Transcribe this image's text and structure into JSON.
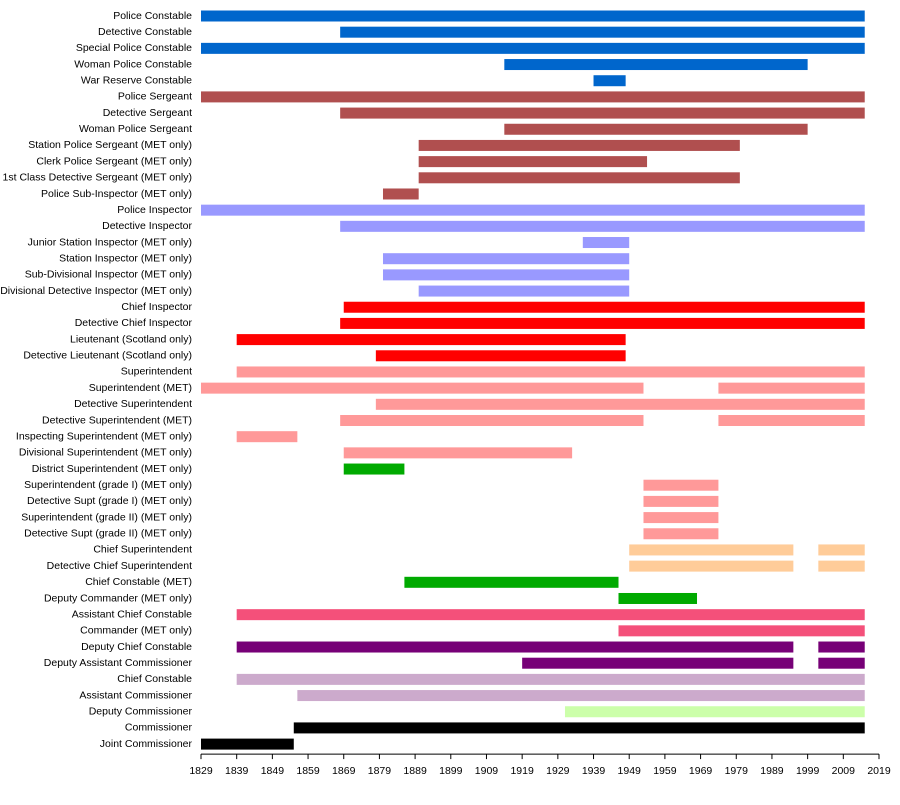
{
  "chart_data": {
    "type": "timeline",
    "xlim": [
      1829,
      2019
    ],
    "xticks": [
      1829,
      1839,
      1849,
      1859,
      1869,
      1879,
      1889,
      1899,
      1909,
      1919,
      1929,
      1939,
      1949,
      1959,
      1969,
      1979,
      1989,
      1999,
      2009,
      2019
    ],
    "rows": [
      {
        "name": "Police Constable",
        "color": "#0066cc",
        "segments": [
          [
            1829,
            2015
          ]
        ]
      },
      {
        "name": "Detective Constable",
        "color": "#0066cc",
        "segments": [
          [
            1868,
            2015
          ]
        ]
      },
      {
        "name": "Special Police Constable",
        "color": "#0066cc",
        "segments": [
          [
            1829,
            2015
          ]
        ]
      },
      {
        "name": "Woman Police Constable",
        "color": "#0066cc",
        "segments": [
          [
            1914,
            1999
          ]
        ]
      },
      {
        "name": "War Reserve Constable",
        "color": "#0066cc",
        "segments": [
          [
            1939,
            1948
          ]
        ]
      },
      {
        "name": "Police Sergeant",
        "color": "#b04f4f",
        "segments": [
          [
            1829,
            2015
          ]
        ]
      },
      {
        "name": "Detective Sergeant",
        "color": "#b04f4f",
        "segments": [
          [
            1868,
            2015
          ]
        ]
      },
      {
        "name": "Woman Police Sergeant",
        "color": "#b04f4f",
        "segments": [
          [
            1914,
            1999
          ]
        ]
      },
      {
        "name": "Station Police Sergeant (MET only)",
        "color": "#b04f4f",
        "segments": [
          [
            1890,
            1980
          ]
        ]
      },
      {
        "name": "Clerk Police Sergeant (MET only)",
        "color": "#b04f4f",
        "segments": [
          [
            1890,
            1954
          ]
        ]
      },
      {
        "name": "1st Class Detective Sergeant (MET only)",
        "color": "#b04f4f",
        "segments": [
          [
            1890,
            1980
          ]
        ]
      },
      {
        "name": "Police Sub-Inspector (MET only)",
        "color": "#b04f4f",
        "segments": [
          [
            1880,
            1890
          ]
        ]
      },
      {
        "name": "Police Inspector",
        "color": "#9999ff",
        "segments": [
          [
            1829,
            2015
          ]
        ]
      },
      {
        "name": "Detective Inspector",
        "color": "#9999ff",
        "segments": [
          [
            1868,
            2015
          ]
        ]
      },
      {
        "name": "Junior Station Inspector (MET only)",
        "color": "#9999ff",
        "segments": [
          [
            1936,
            1949
          ]
        ]
      },
      {
        "name": "Station Inspector (MET only)",
        "color": "#9999ff",
        "segments": [
          [
            1880,
            1949
          ]
        ]
      },
      {
        "name": "Sub-Divisional Inspector (MET only)",
        "color": "#9999ff",
        "segments": [
          [
            1880,
            1949
          ]
        ]
      },
      {
        "name": "Divisional Detective Inspector (MET only)",
        "color": "#9999ff",
        "segments": [
          [
            1890,
            1949
          ]
        ]
      },
      {
        "name": "Chief Inspector",
        "color": "#ff0000",
        "segments": [
          [
            1869,
            2015
          ]
        ]
      },
      {
        "name": "Detective Chief Inspector",
        "color": "#ff0000",
        "segments": [
          [
            1868,
            2015
          ]
        ]
      },
      {
        "name": "Lieutenant (Scotland only)",
        "color": "#ff0000",
        "segments": [
          [
            1839,
            1948
          ]
        ]
      },
      {
        "name": "Detective Lieutenant (Scotland only)",
        "color": "#ff0000",
        "segments": [
          [
            1878,
            1948
          ]
        ]
      },
      {
        "name": "Superintendent",
        "color": "#ff9999",
        "segments": [
          [
            1839,
            2015
          ]
        ]
      },
      {
        "name": "Superintendent (MET)",
        "color": "#ff9999",
        "segments": [
          [
            1829,
            1953
          ],
          [
            1974,
            2015
          ]
        ]
      },
      {
        "name": "Detective Superintendent",
        "color": "#ff9999",
        "segments": [
          [
            1878,
            2015
          ]
        ]
      },
      {
        "name": "Detective Superintendent (MET)",
        "color": "#ff9999",
        "segments": [
          [
            1868,
            1953
          ],
          [
            1974,
            2015
          ]
        ]
      },
      {
        "name": "Inspecting Superintendent (MET only)",
        "color": "#ff9999",
        "segments": [
          [
            1839,
            1856
          ]
        ]
      },
      {
        "name": "Divisional Superintendent (MET only)",
        "color": "#ff9999",
        "segments": [
          [
            1869,
            1933
          ]
        ]
      },
      {
        "name": "District Superintendent (MET only)",
        "color": "#00aa00",
        "segments": [
          [
            1869,
            1886
          ]
        ]
      },
      {
        "name": "Superintendent (grade I) (MET only)",
        "color": "#ff9999",
        "segments": [
          [
            1953,
            1974
          ]
        ]
      },
      {
        "name": "Detective Supt (grade I) (MET only)",
        "color": "#ff9999",
        "segments": [
          [
            1953,
            1974
          ]
        ]
      },
      {
        "name": "Superintendent (grade II) (MET only)",
        "color": "#ff9999",
        "segments": [
          [
            1953,
            1974
          ]
        ]
      },
      {
        "name": "Detective Supt (grade II) (MET only)",
        "color": "#ff9999",
        "segments": [
          [
            1953,
            1974
          ]
        ]
      },
      {
        "name": "Chief Superintendent",
        "color": "#ffcc99",
        "segments": [
          [
            1949,
            1995
          ],
          [
            2002,
            2015
          ]
        ]
      },
      {
        "name": "Detective Chief Superintendent",
        "color": "#ffcc99",
        "segments": [
          [
            1949,
            1995
          ],
          [
            2002,
            2015
          ]
        ]
      },
      {
        "name": "Chief Constable (MET)",
        "color": "#00aa00",
        "segments": [
          [
            1886,
            1946
          ]
        ]
      },
      {
        "name": "Deputy Commander (MET only)",
        "color": "#00aa00",
        "segments": [
          [
            1946,
            1968
          ]
        ]
      },
      {
        "name": "Assistant Chief Constable",
        "color": "#f4507a",
        "segments": [
          [
            1839,
            2015
          ]
        ]
      },
      {
        "name": "Commander (MET only)",
        "color": "#f4507a",
        "segments": [
          [
            1946,
            2015
          ]
        ]
      },
      {
        "name": "Deputy Chief Constable",
        "color": "#770077",
        "segments": [
          [
            1839,
            1995
          ],
          [
            2002,
            2015
          ]
        ]
      },
      {
        "name": "Deputy Assistant Commissioner",
        "color": "#770077",
        "segments": [
          [
            1919,
            1995
          ],
          [
            2002,
            2015
          ]
        ]
      },
      {
        "name": "Chief Constable",
        "color": "#ccaacc",
        "segments": [
          [
            1839,
            2015
          ]
        ]
      },
      {
        "name": "Assistant Commissioner",
        "color": "#ccaacc",
        "segments": [
          [
            1856,
            2015
          ]
        ]
      },
      {
        "name": "Deputy Commissioner",
        "color": "#ccffaa",
        "segments": [
          [
            1931,
            2015
          ]
        ]
      },
      {
        "name": "Commissioner",
        "color": "#000000",
        "segments": [
          [
            1855,
            2015
          ]
        ]
      },
      {
        "name": "Joint Commissioner",
        "color": "#000000",
        "segments": [
          [
            1829,
            1855
          ]
        ]
      }
    ]
  }
}
